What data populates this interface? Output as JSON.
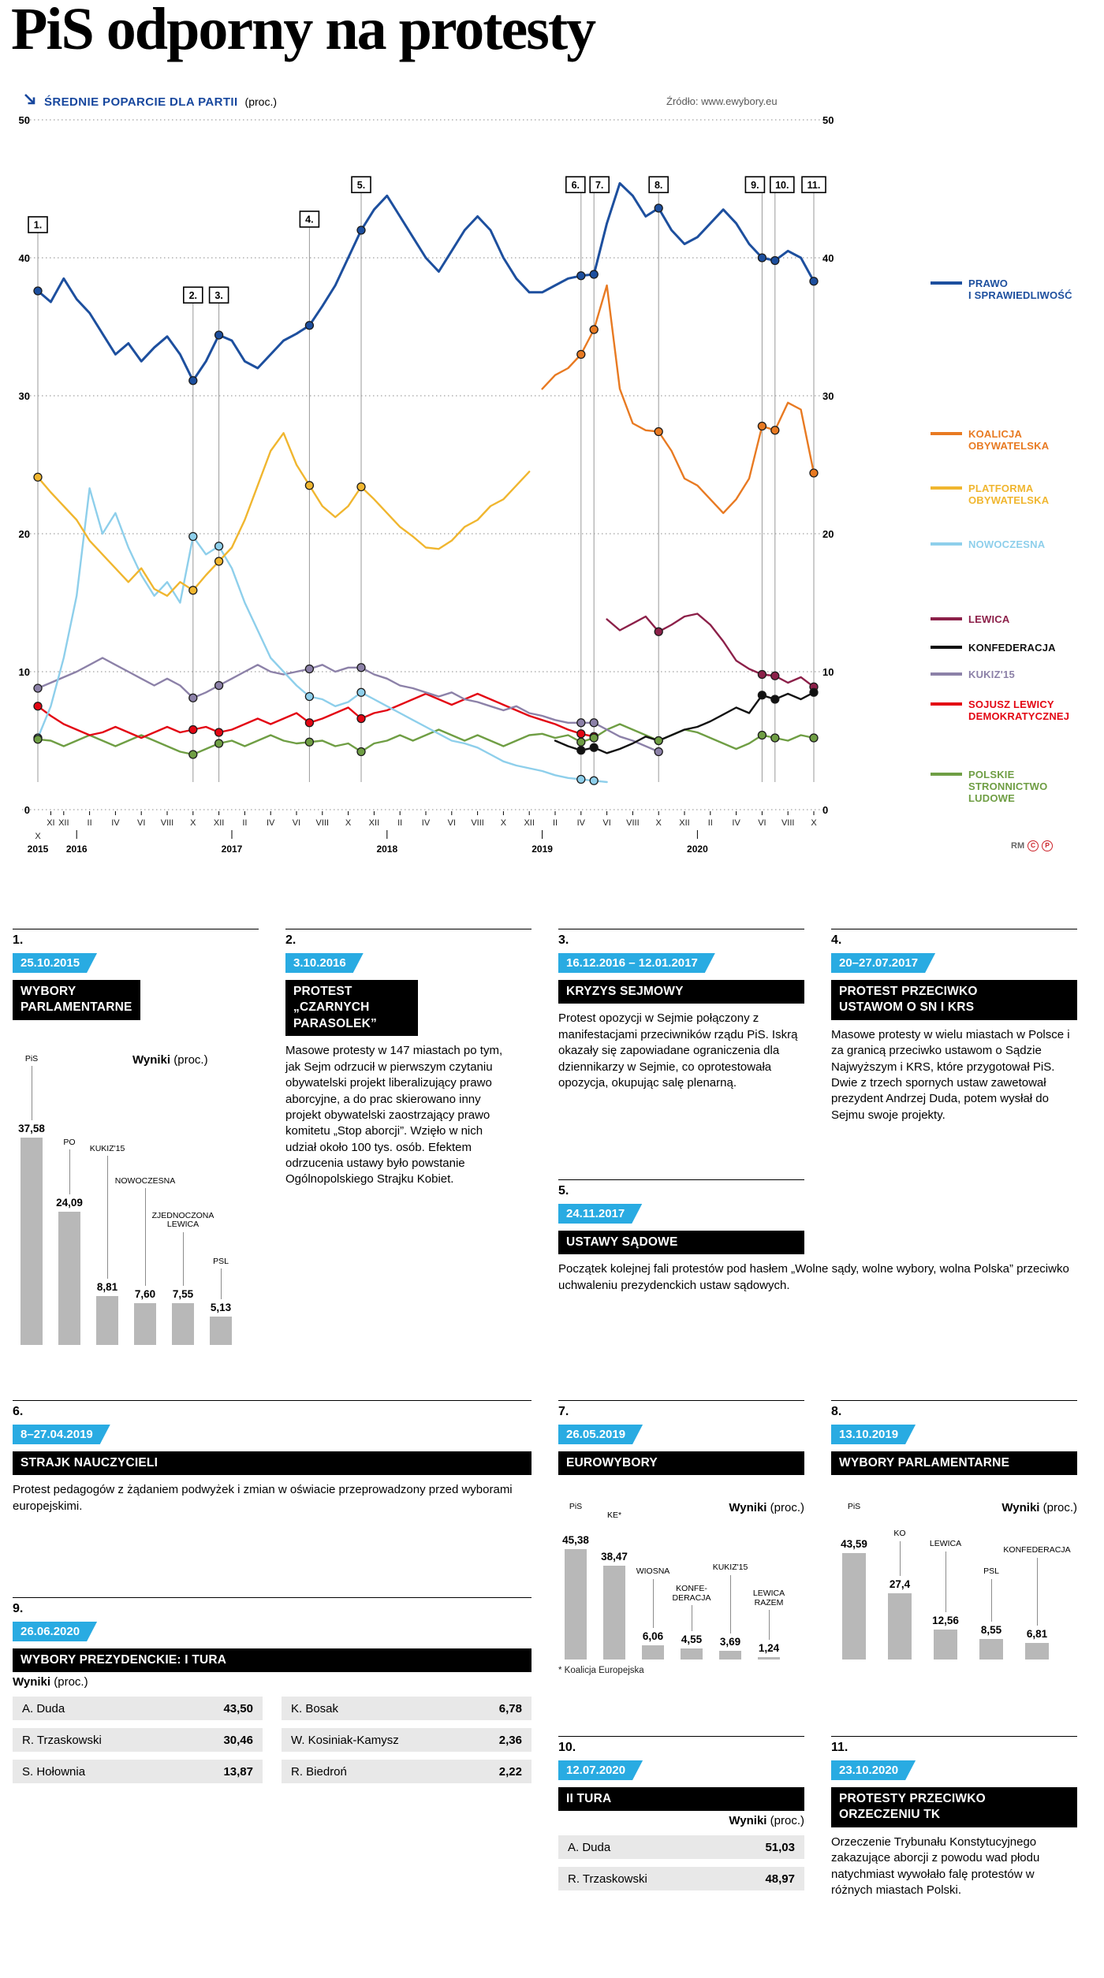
{
  "masthead": {
    "title": "PiS odporny na protesty"
  },
  "chart_header": {
    "heading": "ŚREDNIE POPARCIE DLA PARTII",
    "unit": "(proc.)",
    "source": "Źródło: www.ewybory.eu",
    "credit": "RM",
    "marks": [
      "C",
      "P"
    ]
  },
  "labels": {
    "wyniki": "Wyniki",
    "proc": "(proc.)"
  },
  "legend": [
    {
      "label": "PRAWO\nI SPRAWIEDLIWOŚĆ",
      "color": "#1d4f9e"
    },
    {
      "label": "KOALICJA\nOBYWATELSKA",
      "color": "#e87a22"
    },
    {
      "label": "PLATFORMA\nOBYWATELSKA",
      "color": "#f0b62f"
    },
    {
      "label": "NOWOCZESNA",
      "color": "#8ecfeb"
    },
    {
      "label": "LEWICA",
      "color": "#8c2049"
    },
    {
      "label": "KONFEDERACJA",
      "color": "#111111"
    },
    {
      "label": "KUKIZ'15",
      "color": "#8c81a8"
    },
    {
      "label": "SOJUSZ LEWICY\nDEMOKRATYCZNEJ",
      "color": "#e30613"
    },
    {
      "label": "POLSKIE\nSTRONNICTWO\nLUDOWE",
      "color": "#6f9e44"
    }
  ],
  "chart_data": [
    {
      "id": "party-support",
      "type": "line",
      "title": "ŚREDNIE POPARCIE DLA PARTII (proc.)",
      "x_range": [
        "2015-10",
        "2020-10"
      ],
      "x_unit": "month",
      "ylim": [
        0,
        50
      ],
      "y_ticks": [
        0,
        10,
        20,
        30,
        40,
        50
      ],
      "grid": true,
      "legend_position": "right",
      "month_ticks": [
        {
          "i": 1,
          "t": "XI"
        },
        {
          "i": 2,
          "t": "XII"
        },
        {
          "i": 4,
          "t": "II"
        },
        {
          "i": 6,
          "t": "IV"
        },
        {
          "i": 8,
          "t": "VI"
        },
        {
          "i": 10,
          "t": "VIII"
        },
        {
          "i": 12,
          "t": "X"
        },
        {
          "i": 14,
          "t": "XII"
        },
        {
          "i": 16,
          "t": "II"
        },
        {
          "i": 18,
          "t": "IV"
        },
        {
          "i": 20,
          "t": "VI"
        },
        {
          "i": 22,
          "t": "VIII"
        },
        {
          "i": 24,
          "t": "X"
        },
        {
          "i": 26,
          "t": "XII"
        },
        {
          "i": 28,
          "t": "II"
        },
        {
          "i": 30,
          "t": "IV"
        },
        {
          "i": 32,
          "t": "VI"
        },
        {
          "i": 34,
          "t": "VIII"
        },
        {
          "i": 36,
          "t": "X"
        },
        {
          "i": 38,
          "t": "XII"
        },
        {
          "i": 40,
          "t": "II"
        },
        {
          "i": 42,
          "t": "IV"
        },
        {
          "i": 44,
          "t": "VI"
        },
        {
          "i": 46,
          "t": "VIII"
        },
        {
          "i": 48,
          "t": "X"
        },
        {
          "i": 50,
          "t": "XII"
        },
        {
          "i": 52,
          "t": "II"
        },
        {
          "i": 54,
          "t": "IV"
        },
        {
          "i": 56,
          "t": "VI"
        },
        {
          "i": 58,
          "t": "VIII"
        },
        {
          "i": 60,
          "t": "X"
        }
      ],
      "year_ticks": [
        {
          "i": 0,
          "pre": "X",
          "t": "2015"
        },
        {
          "i": 3,
          "t": "2016"
        },
        {
          "i": 15,
          "t": "2017"
        },
        {
          "i": 27,
          "t": "2018"
        },
        {
          "i": 39,
          "t": "2019"
        },
        {
          "i": 51,
          "t": "2020"
        }
      ],
      "series": [
        {
          "id": "pis",
          "name": "PRAWO I SPRAWIEDLIWOŚĆ",
          "color": "#1d4f9e",
          "start": 0,
          "values": [
            37.6,
            36.8,
            38.5,
            37.0,
            36.0,
            34.5,
            33.0,
            33.8,
            32.5,
            33.5,
            34.3,
            33.0,
            31.1,
            32.5,
            34.4,
            34.0,
            32.5,
            32.0,
            33.0,
            34.0,
            34.5,
            35.1,
            36.5,
            38.0,
            40.0,
            42.0,
            43.5,
            44.5,
            43.0,
            41.5,
            40.0,
            39.0,
            40.5,
            42.0,
            43.0,
            42.0,
            40.0,
            38.5,
            37.5,
            37.5,
            38.0,
            38.5,
            38.7,
            38.8,
            42.5,
            45.4,
            44.5,
            43.0,
            43.6,
            42.0,
            41.0,
            41.5,
            42.5,
            43.5,
            42.5,
            41.0,
            40.0,
            39.8,
            40.5,
            40.0,
            38.3
          ]
        },
        {
          "id": "ko",
          "name": "KOALICJA OBYWATELSKA",
          "color": "#e87a22",
          "start": 39,
          "values": [
            30.5,
            31.5,
            32.0,
            33.0,
            34.8,
            38.0,
            30.5,
            28.0,
            27.5,
            27.4,
            26.0,
            24.0,
            23.5,
            22.5,
            21.5,
            22.5,
            24.0,
            27.8,
            27.5,
            29.5,
            29.0,
            24.4
          ]
        },
        {
          "id": "po",
          "name": "PLATFORMA OBYWATELSKA",
          "color": "#f0b62f",
          "start": 0,
          "values": [
            24.1,
            23.0,
            22.0,
            21.0,
            19.5,
            18.5,
            17.5,
            16.5,
            17.5,
            16.0,
            15.5,
            16.5,
            15.9,
            17.0,
            18.0,
            19.0,
            21.0,
            23.5,
            26.0,
            27.3,
            25.0,
            23.5,
            22.0,
            21.2,
            22.0,
            23.4,
            22.5,
            21.5,
            20.5,
            19.8,
            19.0,
            18.9,
            19.5,
            20.5,
            21.0,
            22.0,
            22.5,
            23.5,
            24.5
          ]
        },
        {
          "id": "nowoczesna",
          "name": "NOWOCZESNA",
          "color": "#8ecfeb",
          "start": 0,
          "values": [
            5.2,
            7.5,
            11.0,
            15.5,
            23.3,
            20.0,
            21.5,
            19.0,
            17.0,
            15.5,
            16.5,
            15.0,
            19.8,
            18.5,
            19.1,
            17.5,
            15.0,
            13.0,
            11.0,
            10.0,
            9.0,
            8.2,
            8.0,
            7.5,
            7.8,
            8.5,
            8.0,
            7.5,
            7.0,
            6.5,
            6.0,
            5.5,
            5.0,
            4.8,
            4.5,
            4.0,
            3.5,
            3.2,
            3.0,
            2.8,
            2.5,
            2.3,
            2.2,
            2.1,
            2.0
          ]
        },
        {
          "id": "lewica",
          "name": "LEWICA",
          "color": "#8c2049",
          "start": 44,
          "values": [
            13.8,
            13.0,
            13.5,
            14.0,
            12.9,
            13.4,
            14.0,
            14.2,
            13.4,
            12.2,
            10.8,
            10.2,
            9.8,
            9.7,
            9.2,
            9.6,
            8.9
          ]
        },
        {
          "id": "konfederacja",
          "name": "KONFEDERACJA",
          "color": "#111111",
          "start": 40,
          "values": [
            5.0,
            4.6,
            4.3,
            4.5,
            4.1,
            4.4,
            4.8,
            5.3,
            5.0,
            5.4,
            5.8,
            6.0,
            6.4,
            6.9,
            7.4,
            7.0,
            8.3,
            8.0,
            8.4,
            8.0,
            8.5
          ]
        },
        {
          "id": "kukiz15",
          "name": "KUKIZ'15",
          "color": "#8c81a8",
          "start": 0,
          "values": [
            8.8,
            9.2,
            9.6,
            10.0,
            10.5,
            11.0,
            10.5,
            10.0,
            9.5,
            9.0,
            9.5,
            9.0,
            8.1,
            8.5,
            9.0,
            9.5,
            10.0,
            10.5,
            10.0,
            9.8,
            10.0,
            10.2,
            10.5,
            10.0,
            10.3,
            10.3,
            9.8,
            9.5,
            9.0,
            8.8,
            8.5,
            8.2,
            8.5,
            8.0,
            7.8,
            7.5,
            7.2,
            7.5,
            7.0,
            6.8,
            6.5,
            6.3,
            6.3,
            6.3,
            5.8,
            5.3,
            5.0,
            4.6,
            4.2
          ]
        },
        {
          "id": "sld",
          "name": "SOJUSZ LEWICY DEMOKRATYCZNEJ",
          "color": "#e30613",
          "start": 0,
          "values": [
            7.5,
            6.8,
            6.2,
            5.8,
            5.4,
            5.6,
            6.0,
            5.6,
            5.2,
            5.6,
            6.0,
            5.6,
            5.8,
            6.0,
            5.6,
            5.8,
            6.2,
            6.6,
            6.2,
            6.6,
            7.0,
            6.3,
            6.6,
            7.0,
            7.4,
            6.6,
            7.0,
            7.2,
            7.6,
            8.0,
            8.4,
            8.0,
            7.6,
            8.0,
            8.4,
            8.0,
            7.6,
            7.2,
            6.8,
            6.5,
            6.2,
            5.8,
            5.5,
            5.3
          ]
        },
        {
          "id": "psl",
          "name": "POLSKIE STRONNICTWO LUDOWE",
          "color": "#6f9e44",
          "start": 0,
          "values": [
            5.1,
            5.0,
            4.6,
            5.0,
            5.4,
            5.0,
            4.6,
            5.0,
            5.4,
            5.0,
            4.6,
            4.2,
            4.0,
            4.4,
            4.8,
            5.0,
            4.6,
            5.0,
            5.4,
            5.0,
            4.8,
            4.9,
            5.0,
            4.6,
            4.8,
            4.2,
            4.8,
            5.0,
            5.4,
            5.0,
            5.4,
            5.8,
            5.4,
            5.0,
            5.4,
            5.0,
            4.6,
            5.0,
            5.4,
            5.5,
            5.2,
            5.4,
            4.9,
            5.2,
            5.8,
            6.2,
            5.8,
            5.4,
            5.0,
            5.4,
            5.8,
            5.6,
            5.2,
            4.8,
            4.4,
            4.8,
            5.4,
            5.2,
            5.0,
            5.4,
            5.2
          ]
        }
      ],
      "event_markers": [
        {
          "n": "1.",
          "month": 0
        },
        {
          "n": "2.",
          "month": 12
        },
        {
          "n": "3.",
          "month": 14
        },
        {
          "n": "4.",
          "month": 21
        },
        {
          "n": "5.",
          "month": 25
        },
        {
          "n": "6.",
          "month": 42
        },
        {
          "n": "7.",
          "month": 43
        },
        {
          "n": "8.",
          "month": 48
        },
        {
          "n": "9.",
          "month": 56
        },
        {
          "n": "10.",
          "month": 57
        },
        {
          "n": "11.",
          "month": 60
        }
      ]
    },
    {
      "id": "sejm-2015",
      "type": "bar",
      "title": "Wyniki (proc.)",
      "categories": [
        "PiS",
        "PO",
        "KUKIZ'15",
        "NOWOCZESNA",
        "ZJEDNOCZONA LEWICA",
        "PSL"
      ],
      "values": [
        37.58,
        24.09,
        8.81,
        7.6,
        7.55,
        5.13
      ],
      "labels": [
        "37,58",
        "24,09",
        "8,81",
        "7,60",
        "7,55",
        "5,13"
      ]
    },
    {
      "id": "euro-2019",
      "type": "bar",
      "title": "Wyniki (proc.)",
      "categories": [
        "PiS",
        "KE*",
        "WIOSNA",
        "KONFEDERACJA",
        "KUKIZ'15",
        "LEWICA RAZEM"
      ],
      "values": [
        45.38,
        38.47,
        6.06,
        4.55,
        3.69,
        1.24
      ],
      "labels": [
        "45,38",
        "38,47",
        "6,06",
        "4,55",
        "3,69",
        "1,24"
      ],
      "footnote": "* Koalicja Europejska"
    },
    {
      "id": "sejm-2019",
      "type": "bar",
      "title": "Wyniki (proc.)",
      "categories": [
        "PiS",
        "KO",
        "LEWICA",
        "PSL",
        "KONFEDERACJA"
      ],
      "values": [
        43.59,
        27.4,
        12.56,
        8.55,
        6.81
      ],
      "labels": [
        "43,59",
        "27,4",
        "12,56",
        "8,55",
        "6,81"
      ]
    },
    {
      "id": "prezydenckie-1-tura",
      "type": "table",
      "title": "WYBORY PREZYDENCKIE: I TURA — Wyniki (proc.)",
      "rows": [
        [
          "A. Duda",
          "43,50"
        ],
        [
          "R. Trzaskowski",
          "30,46"
        ],
        [
          "S. Hołownia",
          "13,87"
        ],
        [
          "K. Bosak",
          "6,78"
        ],
        [
          "W. Kosiniak-Kamysz",
          "2,36"
        ],
        [
          "R. Biedroń",
          "2,22"
        ]
      ]
    },
    {
      "id": "prezydenckie-2-tura",
      "type": "table",
      "title": "II TURA — Wyniki (proc.)",
      "rows": [
        [
          "A. Duda",
          "51,03"
        ],
        [
          "R. Trzaskowski",
          "48,97"
        ]
      ]
    }
  ],
  "sections": {
    "s1": {
      "num": "1.",
      "date": "25.10.2015",
      "title": "WYBORY\nPARLAMENTARNE"
    },
    "s2": {
      "num": "2.",
      "date": "3.10.2016",
      "title": "PROTEST\n„CZARNYCH\nPARASOLEK”",
      "body": "Masowe protesty w 147 miastach po tym, jak Sejm odrzucił w pierwszym czytaniu obywatelski projekt liberalizujący prawo aborcyjne, a do prac skierowano inny projekt obywatelski zaostrzający prawo komitetu „Stop aborcji”. Wzięło w nich udział około 100 tys. osób. Efektem odrzucenia ustawy było powstanie Ogólnopolskiego Strajku Kobiet."
    },
    "s3": {
      "num": "3.",
      "date": "16.12.2016 – 12.01.2017",
      "title": "KRYZYS SEJMOWY",
      "body": "Protest opozycji w Sejmie połączony z manifestacjami przeciwników rządu PiS. Iskrą okazały się zapowiadane ograniczenia dla dziennikarzy w Sejmie, co oprotestowała opozycja, okupując salę plenarną."
    },
    "s4": {
      "num": "4.",
      "date": "20–27.07.2017",
      "title": "PROTEST PRZECIWKO\nUSTAWOM O SN I KRS",
      "body": "Masowe protesty w wielu miastach w Polsce i za granicą przeciwko ustawom o Sądzie Najwyższym i KRS, które przygotował PiS. Dwie z trzech spornych ustaw zawetował prezydent Andrzej Duda, potem wysłał do Sejmu swoje projekty."
    },
    "s5": {
      "num": "5.",
      "date": "24.11.2017",
      "title": "USTAWY SĄDOWE",
      "body": "Początek kolejnej fali protestów pod hasłem „Wolne sądy, wolne wybory, wolna Polska” przeciwko uchwaleniu prezydenckich ustaw sądowych."
    },
    "s6": {
      "num": "6.",
      "date": "8–27.04.2019",
      "title": "STRAJK NAUCZYCIELI",
      "body": "Protest pedagogów z żądaniem podwyżek i zmian w oświacie przeprowadzony przed wyborami europejskimi."
    },
    "s7": {
      "num": "7.",
      "date": "26.05.2019",
      "title": "EUROWYBORY"
    },
    "s8": {
      "num": "8.",
      "date": "13.10.2019",
      "title": "WYBORY PARLAMENTARNE"
    },
    "s9": {
      "num": "9.",
      "date": "26.06.2020",
      "title": "WYBORY PREZYDENCKIE: I TURA"
    },
    "s10": {
      "num": "10.",
      "date": "12.07.2020",
      "title": "II TURA"
    },
    "s11": {
      "num": "11.",
      "date": "23.10.2020",
      "title": "PROTESTY PRZECIWKO\nORZECZENIU TK",
      "body": "Orzeczenie Trybunału Konstytucyjnego zakazujące aborcji z powodu wad płodu natychmiast wywołało falę protestów w różnych miastach Polski."
    }
  }
}
